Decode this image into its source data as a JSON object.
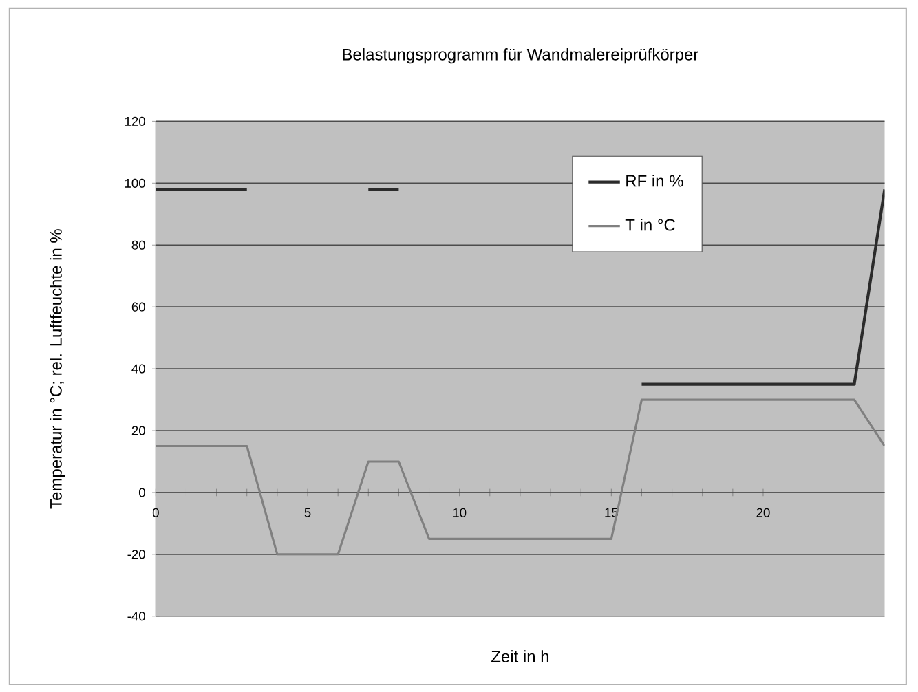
{
  "chart_data": {
    "type": "line",
    "title": "Belastungsprogramm für Wandmalereiprüfkörper",
    "xlabel": "Zeit in h",
    "ylabel": "Temperatur in °C; rel. Luftfeuchte in %",
    "xlim": [
      0,
      24
    ],
    "xticks": [
      0,
      5,
      10,
      15,
      20
    ],
    "ylim": [
      -40,
      120
    ],
    "yticks": [
      -40,
      -20,
      0,
      20,
      40,
      60,
      80,
      100,
      120
    ],
    "grid": "y",
    "legend": "top right",
    "marker": "none",
    "line_style": "solid",
    "series": [
      {
        "name": "RF in %",
        "color": "#2b2b2b",
        "x": [
          0,
          3,
          5,
          7,
          8,
          12,
          16,
          23,
          24
        ],
        "values": [
          98,
          98,
          null,
          98,
          98,
          null,
          35,
          35,
          98
        ]
      },
      {
        "name": "T in °C",
        "color": "#808080",
        "x": [
          0,
          3,
          4,
          6,
          7,
          8,
          9,
          15,
          16,
          23,
          24
        ],
        "values": [
          15,
          15,
          -20,
          -20,
          10,
          10,
          -15,
          -15,
          30,
          30,
          15
        ]
      }
    ]
  }
}
